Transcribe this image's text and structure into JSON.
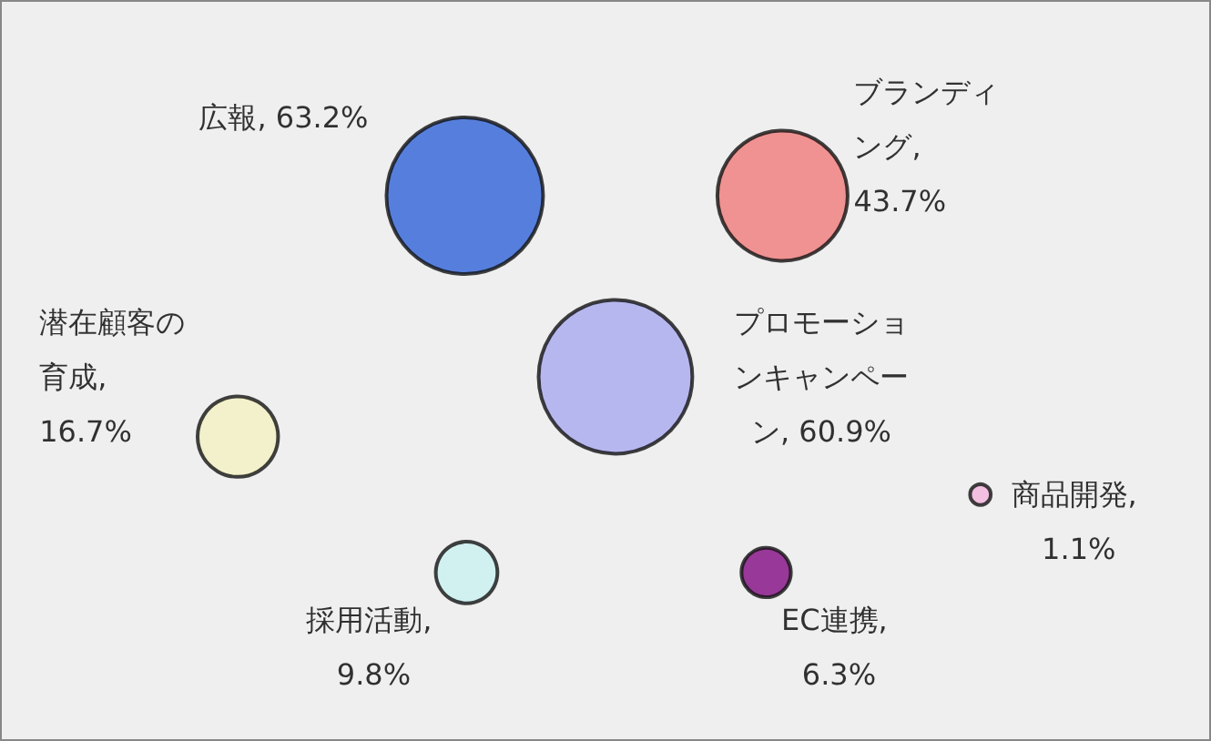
{
  "chart_data": {
    "type": "other",
    "values": [
      63.2,
      43.7,
      16.7,
      60.9,
      1.1,
      9.8,
      6.3
    ],
    "value_labels": [
      "広報, 63.2%",
      "ブランディング, 43.7%",
      "潜在顧客の育成, 16.7%",
      "プロモーションキャンペーン, 60.9%",
      "商品開発, 1.1%",
      "採用活動, 9.8%",
      "EC連携, 6.3%"
    ],
    "colors": [
      "#2f63d8",
      "#ef7b79",
      "#f4f1c2",
      "#a9a9f0",
      "#f2b3dc",
      "#c9f1f1",
      "#820a82"
    ]
  }
}
